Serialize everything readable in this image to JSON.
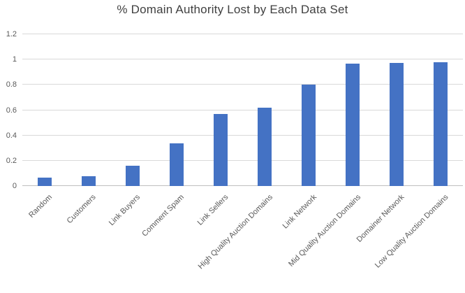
{
  "title": "% Domain Authority Lost by Each Data Set",
  "colors": {
    "background": "#FFFFFF",
    "bar": "#4472C4",
    "gridline": "#D9D9D9",
    "axis_line": "#BFBFBF",
    "title_text": "#404040",
    "tick_text": "#595959"
  },
  "chart_data": {
    "type": "bar",
    "title": "% Domain Authority Lost by Each Data Set",
    "categories": [
      "Random",
      "Customers",
      "Link Buyers",
      "Comment Spam",
      "Link Sellers",
      "High Quality Auction Domains",
      "Link Network",
      "Mid Quality Auction Domains",
      "Domainer Network",
      "Low Quality Auction Domains"
    ],
    "values": [
      0.065,
      0.08,
      0.16,
      0.34,
      0.57,
      0.62,
      0.8,
      0.97,
      0.975,
      0.98
    ],
    "xlabel": "",
    "ylabel": "",
    "ylim": [
      0,
      1.2
    ],
    "yticks": [
      0,
      0.2,
      0.4,
      0.6,
      0.8,
      1,
      1.2
    ],
    "grid": true,
    "legend": false,
    "x_label_rotation_deg": 45
  }
}
